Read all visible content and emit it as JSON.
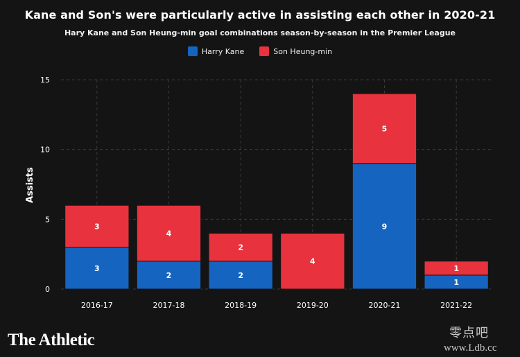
{
  "chart_data": {
    "type": "bar",
    "stacked": true,
    "title": "Kane and Son's were particularly active in assisting each other in 2020-21",
    "subtitle": "Hary Kane and Son Heung-min goal combinations season-by-season in the Premier League",
    "ylabel": "Assists",
    "xlabel": "",
    "ylim": [
      0,
      15
    ],
    "yticks": [
      0,
      5,
      10,
      15
    ],
    "grid": true,
    "legend_position": "top-center",
    "categories": [
      "2016-17",
      "2017-18",
      "2018-19",
      "2019-20",
      "2020-21",
      "2021-22"
    ],
    "series": [
      {
        "name": "Harry Kane",
        "color": "#1565c0",
        "values": [
          3,
          2,
          2,
          0,
          9,
          1
        ]
      },
      {
        "name": "Son Heung-min",
        "color": "#e8323e",
        "values": [
          3,
          4,
          2,
          4,
          5,
          1
        ]
      }
    ]
  },
  "branding": {
    "logo_text": "The Athletic",
    "watermark_cn": "零点吧",
    "watermark_url": "www.Ldb.cc"
  }
}
